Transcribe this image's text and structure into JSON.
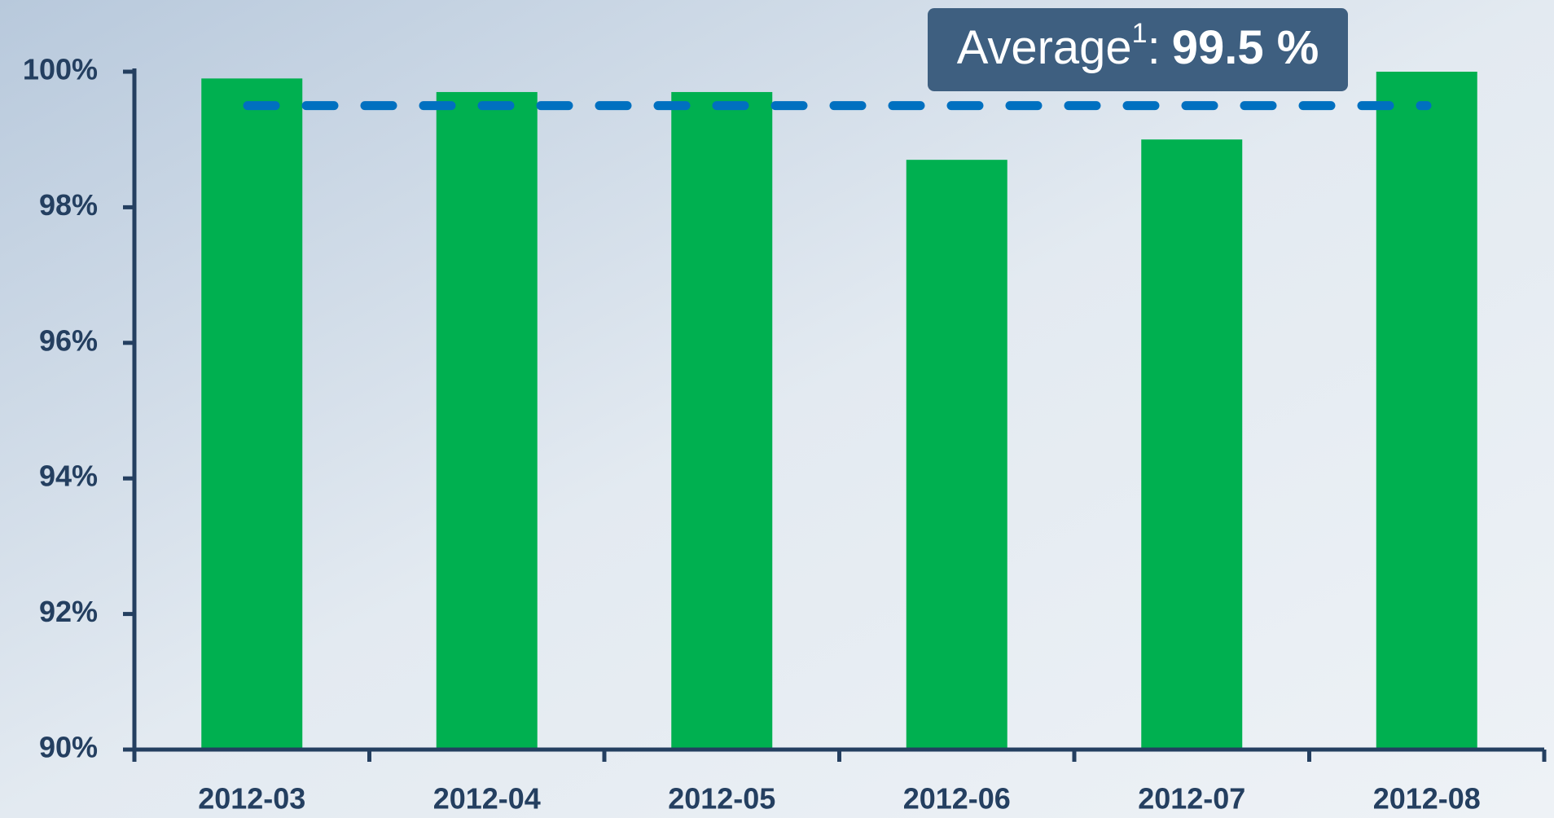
{
  "chart_data": {
    "type": "bar",
    "categories": [
      "2012-03",
      "2012-04",
      "2012-05",
      "2012-06",
      "2012-07",
      "2012-08"
    ],
    "values": [
      99.9,
      99.7,
      99.7,
      98.7,
      99.0,
      100.0
    ],
    "color": "#00b050",
    "ylim": [
      90,
      100
    ],
    "yticks": [
      {
        "value": 90,
        "label": "90%"
      },
      {
        "value": 92,
        "label": "92%"
      },
      {
        "value": 94,
        "label": "94%"
      },
      {
        "value": 96,
        "label": "96%"
      },
      {
        "value": 98,
        "label": "98%"
      },
      {
        "value": 100,
        "label": "100%"
      }
    ],
    "average": {
      "value": 99.5,
      "label": "Average",
      "superscript": "1",
      "separator": ":",
      "value_label": "99.5 %",
      "color": "#0070c0"
    }
  }
}
